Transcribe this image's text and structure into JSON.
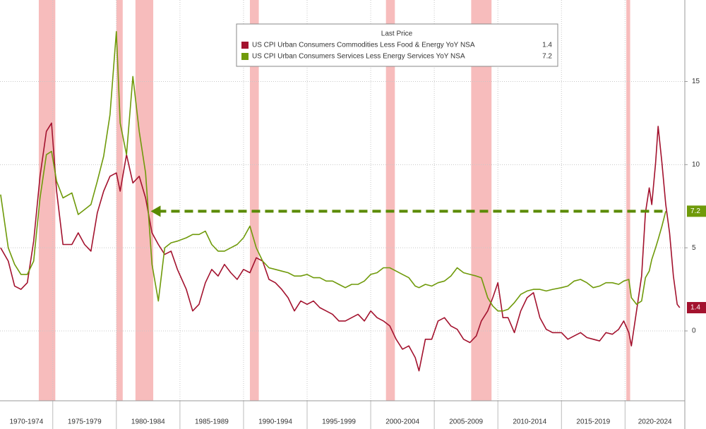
{
  "chart_data": {
    "type": "line",
    "legend_title": "Last Price",
    "xlim": [
      1970.85,
      2024.7
    ],
    "ylim": [
      -4.2,
      19.9
    ],
    "yticks": [
      0,
      5,
      10,
      15
    ],
    "xticks": [
      {
        "value": 1970,
        "label": "1970-1974"
      },
      {
        "value": 1975,
        "label": "1975-1979"
      },
      {
        "value": 1980,
        "label": "1980-1984"
      },
      {
        "value": 1985,
        "label": "1985-1989"
      },
      {
        "value": 1990,
        "label": "1990-1994"
      },
      {
        "value": 1995,
        "label": "1995-1999"
      },
      {
        "value": 2000,
        "label": "2000-2004"
      },
      {
        "value": 2005,
        "label": "2005-2009"
      },
      {
        "value": 2010,
        "label": "2010-2014"
      },
      {
        "value": 2015,
        "label": "2015-2019"
      },
      {
        "value": 2020,
        "label": "2020-2024"
      }
    ],
    "grid": true,
    "shaded_periods": [
      [
        1973.9,
        1975.2
      ],
      [
        1980.0,
        1980.5
      ],
      [
        1981.5,
        1982.9
      ],
      [
        1990.5,
        1991.2
      ],
      [
        2001.2,
        2001.9
      ],
      [
        2007.9,
        2009.5
      ],
      [
        2020.1,
        2020.4
      ]
    ],
    "arrow": {
      "x_start": 1982.7
    },
    "series": [
      {
        "name": "US CPI Urban Consumers Commodities Less Food & Energy YoY NSA",
        "color": "#a3122e",
        "x": [
          1970.9,
          1971.5,
          1972,
          1972.5,
          1973,
          1973.5,
          1974,
          1974.5,
          1974.9,
          1975.3,
          1975.8,
          1976.5,
          1977,
          1977.5,
          1978,
          1978.5,
          1979,
          1979.5,
          1980,
          1980.3,
          1980.8,
          1981.3,
          1981.8,
          1982.3,
          1982.8,
          1983.3,
          1983.8,
          1984.3,
          1984.8,
          1985.5,
          1986,
          1986.5,
          1987,
          1987.5,
          1988,
          1988.5,
          1989,
          1989.5,
          1990,
          1990.5,
          1991,
          1991.5,
          1992,
          1992.5,
          1993,
          1993.5,
          1994,
          1994.5,
          1995,
          1995.5,
          1996,
          1996.5,
          1997,
          1997.5,
          1998,
          1998.5,
          1999,
          1999.5,
          2000,
          2000.5,
          2001,
          2001.5,
          2002,
          2002.5,
          2003,
          2003.5,
          2003.8,
          2004.3,
          2004.8,
          2005.3,
          2005.8,
          2006.3,
          2006.8,
          2007.3,
          2007.8,
          2008.3,
          2008.7,
          2009.2,
          2009.6,
          2010,
          2010.4,
          2010.8,
          2011.3,
          2011.8,
          2012.3,
          2012.8,
          2013.3,
          2013.8,
          2014.3,
          2015,
          2015.5,
          2016,
          2016.5,
          2017,
          2017.5,
          2018,
          2018.5,
          2019,
          2019.5,
          2019.9,
          2020.3,
          2020.5,
          2020.9,
          2021.3,
          2021.6,
          2021.9,
          2022.1,
          2022.4,
          2022.6,
          2022.9,
          2023.2,
          2023.5,
          2023.8,
          2024.1,
          2024.3
        ],
        "values": [
          5.0,
          4.2,
          2.7,
          2.5,
          2.9,
          5.4,
          9.3,
          12.0,
          12.5,
          8.4,
          5.2,
          5.2,
          5.9,
          5.2,
          4.8,
          7.1,
          8.4,
          9.3,
          9.5,
          8.4,
          10.6,
          8.9,
          9.3,
          8.0,
          5.9,
          5.2,
          4.6,
          4.8,
          3.7,
          2.5,
          1.2,
          1.6,
          2.9,
          3.7,
          3.3,
          4.0,
          3.5,
          3.1,
          3.7,
          3.5,
          4.4,
          4.2,
          3.1,
          2.9,
          2.5,
          2.0,
          1.2,
          1.8,
          1.6,
          1.8,
          1.4,
          1.2,
          1.0,
          0.6,
          0.6,
          0.8,
          1.0,
          0.6,
          1.2,
          0.8,
          0.6,
          0.3,
          -0.5,
          -1.1,
          -0.9,
          -1.6,
          -2.4,
          -0.5,
          -0.5,
          0.6,
          0.8,
          0.3,
          0.1,
          -0.5,
          -0.7,
          -0.3,
          0.6,
          1.2,
          2.0,
          2.9,
          0.8,
          0.8,
          -0.1,
          1.2,
          2.0,
          2.3,
          0.8,
          0.1,
          -0.1,
          -0.1,
          -0.5,
          -0.3,
          -0.1,
          -0.4,
          -0.5,
          -0.6,
          -0.1,
          -0.2,
          0.1,
          0.6,
          -0.1,
          -0.9,
          1.2,
          3.3,
          7.1,
          8.6,
          7.6,
          10.1,
          12.3,
          10.1,
          7.6,
          5.9,
          3.3,
          1.6,
          1.4
        ]
      },
      {
        "name": "US CPI Urban Consumers Services Less Energy Services YoY NSA",
        "color": "#6f9a0a",
        "x": [
          1970.9,
          1971.5,
          1972,
          1972.5,
          1973,
          1973.5,
          1974,
          1974.5,
          1974.9,
          1975.3,
          1975.8,
          1976.5,
          1977,
          1977.5,
          1978,
          1978.5,
          1979,
          1979.5,
          1980,
          1980.3,
          1980.8,
          1981.3,
          1981.8,
          1982.3,
          1982.8,
          1983.3,
          1983.8,
          1984.3,
          1984.8,
          1985.5,
          1986,
          1986.5,
          1987,
          1987.5,
          1988,
          1988.5,
          1989,
          1989.5,
          1990,
          1990.5,
          1991,
          1991.5,
          1992,
          1992.5,
          1993,
          1993.5,
          1994,
          1994.5,
          1995,
          1995.5,
          1996,
          1996.5,
          1997,
          1997.5,
          1998,
          1998.5,
          1999,
          1999.5,
          2000,
          2000.5,
          2001,
          2001.5,
          2002,
          2002.5,
          2003,
          2003.5,
          2003.8,
          2004.3,
          2004.8,
          2005.3,
          2005.8,
          2006.3,
          2006.8,
          2007.3,
          2007.8,
          2008.3,
          2008.7,
          2009.2,
          2009.6,
          2010,
          2010.4,
          2010.8,
          2011.3,
          2011.8,
          2012.3,
          2012.8,
          2013.3,
          2013.8,
          2014.3,
          2015,
          2015.5,
          2016,
          2016.5,
          2017,
          2017.5,
          2018,
          2018.5,
          2019,
          2019.5,
          2019.9,
          2020.3,
          2020.5,
          2020.9,
          2021.3,
          2021.6,
          2021.9,
          2022.1,
          2022.4,
          2022.6,
          2022.9,
          2023.2
        ],
        "values": [
          8.2,
          5.0,
          4.0,
          3.4,
          3.4,
          4.2,
          8.0,
          10.6,
          10.8,
          9.0,
          8.0,
          8.3,
          7.0,
          7.3,
          7.6,
          9.0,
          10.5,
          13.0,
          18.0,
          12.5,
          10.6,
          15.3,
          12.0,
          9.5,
          4.0,
          1.8,
          5.0,
          5.3,
          5.4,
          5.6,
          5.8,
          5.8,
          6.0,
          5.2,
          4.8,
          4.8,
          5.0,
          5.2,
          5.6,
          6.3,
          5.0,
          4.2,
          3.8,
          3.7,
          3.6,
          3.5,
          3.3,
          3.3,
          3.4,
          3.2,
          3.2,
          3.0,
          3.0,
          2.8,
          2.6,
          2.8,
          2.8,
          3.0,
          3.4,
          3.5,
          3.8,
          3.8,
          3.6,
          3.4,
          3.2,
          2.7,
          2.6,
          2.8,
          2.7,
          2.9,
          3.0,
          3.3,
          3.8,
          3.5,
          3.4,
          3.3,
          3.2,
          2.0,
          1.5,
          1.2,
          1.2,
          1.3,
          1.7,
          2.2,
          2.4,
          2.5,
          2.5,
          2.4,
          2.5,
          2.6,
          2.7,
          3.0,
          3.1,
          2.9,
          2.6,
          2.7,
          2.9,
          2.9,
          2.8,
          3.0,
          3.1,
          2.0,
          1.6,
          1.8,
          3.2,
          3.6,
          4.3,
          5.0,
          5.5,
          6.3,
          7.2
        ]
      }
    ]
  }
}
